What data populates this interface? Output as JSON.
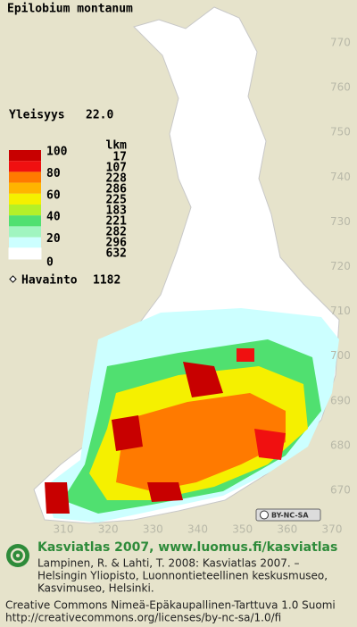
{
  "title": "Epilobium montanum",
  "frequency": {
    "label": "Yleisyys",
    "value": "22.0"
  },
  "legend": {
    "scale": [
      100,
      80,
      60,
      40,
      20,
      0
    ],
    "colors": [
      "#c80000",
      "#f01010",
      "#ff7a00",
      "#ffb400",
      "#f5f000",
      "#b4f028",
      "#50e070",
      "#a0f5c0",
      "#ccffff",
      "#ffffff"
    ],
    "count_header": "lkm",
    "counts": [
      17,
      107,
      228,
      286,
      225,
      183,
      221,
      282,
      296,
      632
    ]
  },
  "observations": {
    "label": "Havainto",
    "value": 1182
  },
  "map": {
    "yticks": [
      770,
      760,
      750,
      740,
      730,
      720,
      710,
      700,
      690,
      680,
      670
    ],
    "xticks": [
      310,
      320,
      330,
      340,
      350,
      360,
      370
    ]
  },
  "license_badge": "BY-NC-SA",
  "footer": {
    "heading": "Kasviatlas 2007, www.luomus.fi/kasviatlas",
    "citation": [
      "Lampinen, R. & Lahti, T. 2008: Kasviatlas 2007. –",
      "Helsingin Yliopisto, Luonnontieteellinen keskusmuseo,",
      "Kasvimuseo, Helsinki."
    ],
    "license": "Creative Commons Nimeä-Epäkaupallinen-Tarttuva 1.0 Suomi",
    "url": "http://creativecommons.org/licenses/by-nc-sa/1.0/fi"
  }
}
